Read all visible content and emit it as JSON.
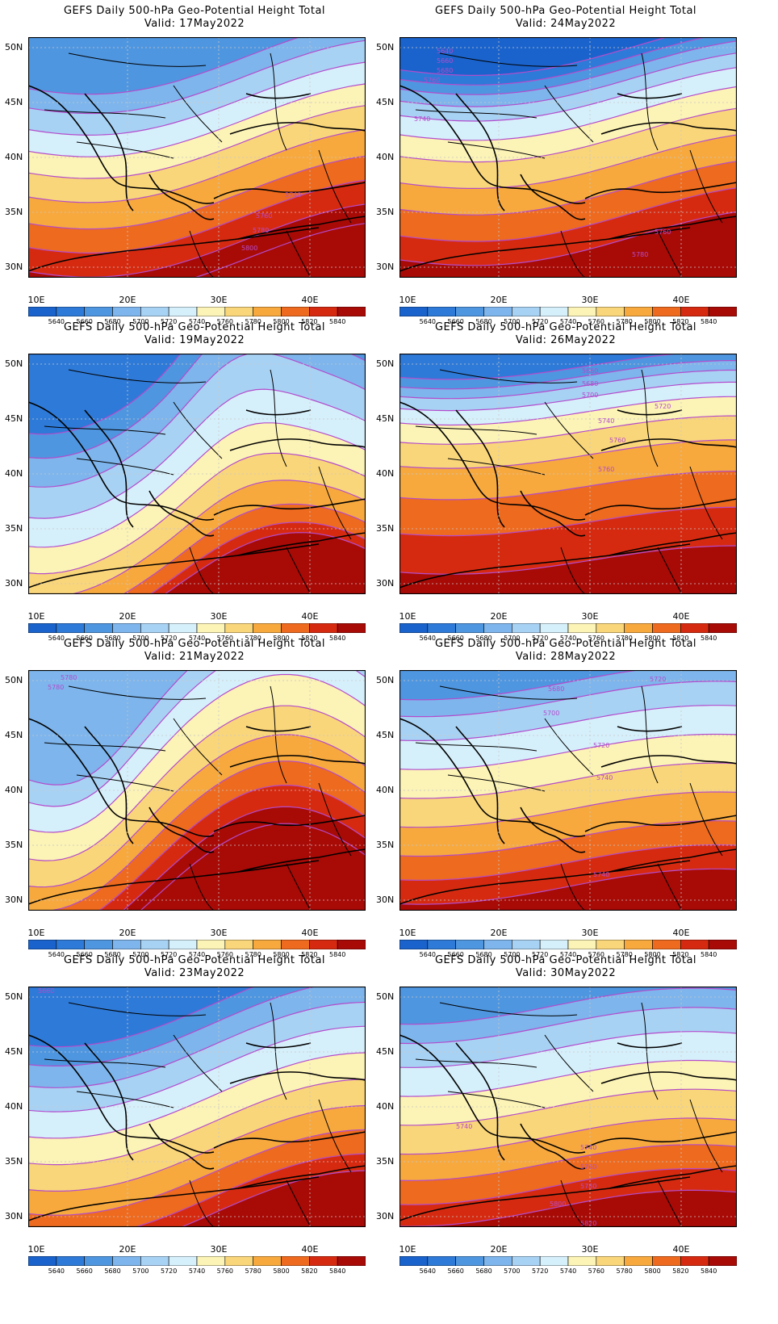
{
  "title_prefix": "GEFS Daily 500-hPa Geo-Potential Height Total",
  "lat_labels": [
    "50N",
    "45N",
    "40N",
    "35N",
    "30N"
  ],
  "lon_labels": [
    "10E",
    "20E",
    "30E",
    "40E"
  ],
  "colorbar": {
    "labels": [
      "5640",
      "5660",
      "5680",
      "5700",
      "5720",
      "5740",
      "5760",
      "5780",
      "5800",
      "5820",
      "5840"
    ],
    "colors": [
      "#1a63cc",
      "#2e7ad8",
      "#4f96e0",
      "#7db5ec",
      "#a8d2f4",
      "#d6f0fb",
      "#fcf3b6",
      "#fad67a",
      "#f7a93e",
      "#ee6a1e",
      "#d62a10",
      "#a80a06"
    ],
    "contour_color": "#b44ccc"
  },
  "panels": [
    {
      "valid": "Valid: 17May2022",
      "contour_labels": [
        "5740",
        "5760",
        "5780",
        "5800"
      ]
    },
    {
      "valid": "Valid: 24May2022",
      "contour_labels": [
        "5640",
        "5660",
        "5680",
        "5760",
        "5740",
        "5760",
        "5780"
      ]
    },
    {
      "valid": "Valid: 19May2022",
      "contour_labels": []
    },
    {
      "valid": "Valid: 26May2022",
      "contour_labels": [
        "5660",
        "5680",
        "5700",
        "5720",
        "5740",
        "5760",
        "5760",
        "5780"
      ]
    },
    {
      "valid": "Valid: 21May2022",
      "contour_labels": [
        "5780",
        "5780"
      ]
    },
    {
      "valid": "Valid: 28May2022",
      "contour_labels": [
        "5680",
        "5700",
        "5720",
        "5720",
        "5740",
        "5740",
        "5800"
      ]
    },
    {
      "valid": "Valid: 23May2022",
      "contour_labels": [
        "5660"
      ]
    },
    {
      "valid": "Valid: 30May2022",
      "contour_labels": [
        "5740",
        "5740",
        "5760",
        "5780",
        "5800",
        "5820"
      ]
    }
  ]
}
